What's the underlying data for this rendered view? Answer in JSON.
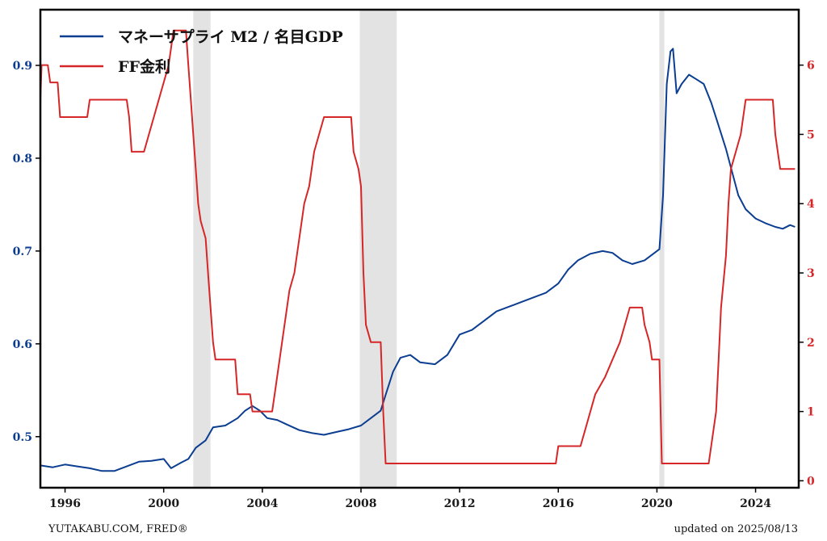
{
  "chart_data": {
    "type": "line",
    "x_range": [
      1995,
      2025.75
    ],
    "grid": false,
    "legend_position": "top-left",
    "recessions": [
      {
        "start": 2001.2,
        "end": 2001.9
      },
      {
        "start": 2007.95,
        "end": 2009.45
      },
      {
        "start": 2020.1,
        "end": 2020.3
      }
    ],
    "x_ticks": [
      "1996",
      "2000",
      "2004",
      "2008",
      "2012",
      "2016",
      "2020",
      "2024"
    ],
    "x_tick_values": [
      1996,
      2000,
      2004,
      2008,
      2012,
      2016,
      2020,
      2024
    ],
    "y_left": {
      "range": [
        0.445,
        0.96
      ],
      "ticks": [
        0.5,
        0.6,
        0.7,
        0.8,
        0.9
      ],
      "tick_labels": [
        "0.5",
        "0.6",
        "0.7",
        "0.8",
        "0.9"
      ],
      "color": "#0b3d91"
    },
    "y_right": {
      "range": [
        -0.1,
        6.8
      ],
      "ticks": [
        0,
        1,
        2,
        3,
        4,
        5,
        6
      ],
      "tick_labels": [
        "0",
        "1",
        "2",
        "3",
        "4",
        "5",
        "6"
      ],
      "color": "#d62728"
    },
    "series": [
      {
        "name": "マネーサプライ M2 / 名目GDP",
        "axis": "left",
        "color": "#0b3d91",
        "points": [
          [
            1995.0,
            0.469
          ],
          [
            1995.5,
            0.467
          ],
          [
            1996.0,
            0.47
          ],
          [
            1996.5,
            0.468
          ],
          [
            1997.0,
            0.466
          ],
          [
            1997.5,
            0.463
          ],
          [
            1998.0,
            0.463
          ],
          [
            1998.5,
            0.468
          ],
          [
            1999.0,
            0.473
          ],
          [
            1999.5,
            0.474
          ],
          [
            2000.0,
            0.476
          ],
          [
            2000.3,
            0.466
          ],
          [
            2000.7,
            0.472
          ],
          [
            2001.0,
            0.476
          ],
          [
            2001.3,
            0.488
          ],
          [
            2001.7,
            0.496
          ],
          [
            2002.0,
            0.51
          ],
          [
            2002.5,
            0.512
          ],
          [
            2003.0,
            0.52
          ],
          [
            2003.3,
            0.528
          ],
          [
            2003.6,
            0.533
          ],
          [
            2003.9,
            0.528
          ],
          [
            2004.2,
            0.52
          ],
          [
            2004.6,
            0.518
          ],
          [
            2005.0,
            0.513
          ],
          [
            2005.5,
            0.507
          ],
          [
            2006.0,
            0.504
          ],
          [
            2006.5,
            0.502
          ],
          [
            2007.0,
            0.505
          ],
          [
            2007.5,
            0.508
          ],
          [
            2008.0,
            0.512
          ],
          [
            2008.4,
            0.52
          ],
          [
            2008.8,
            0.528
          ],
          [
            2009.0,
            0.545
          ],
          [
            2009.3,
            0.57
          ],
          [
            2009.6,
            0.585
          ],
          [
            2010.0,
            0.588
          ],
          [
            2010.4,
            0.58
          ],
          [
            2011.0,
            0.578
          ],
          [
            2011.5,
            0.588
          ],
          [
            2012.0,
            0.61
          ],
          [
            2012.5,
            0.615
          ],
          [
            2013.0,
            0.625
          ],
          [
            2013.5,
            0.635
          ],
          [
            2014.0,
            0.64
          ],
          [
            2014.5,
            0.645
          ],
          [
            2015.0,
            0.65
          ],
          [
            2015.5,
            0.655
          ],
          [
            2016.0,
            0.665
          ],
          [
            2016.4,
            0.68
          ],
          [
            2016.8,
            0.69
          ],
          [
            2017.3,
            0.697
          ],
          [
            2017.8,
            0.7
          ],
          [
            2018.2,
            0.698
          ],
          [
            2018.6,
            0.69
          ],
          [
            2019.0,
            0.686
          ],
          [
            2019.5,
            0.69
          ],
          [
            2019.9,
            0.698
          ],
          [
            2020.1,
            0.702
          ],
          [
            2020.25,
            0.76
          ],
          [
            2020.4,
            0.88
          ],
          [
            2020.55,
            0.915
          ],
          [
            2020.65,
            0.918
          ],
          [
            2020.8,
            0.87
          ],
          [
            2021.0,
            0.88
          ],
          [
            2021.3,
            0.89
          ],
          [
            2021.6,
            0.885
          ],
          [
            2021.9,
            0.88
          ],
          [
            2022.2,
            0.86
          ],
          [
            2022.5,
            0.835
          ],
          [
            2022.8,
            0.81
          ],
          [
            2023.0,
            0.79
          ],
          [
            2023.3,
            0.76
          ],
          [
            2023.6,
            0.745
          ],
          [
            2024.0,
            0.735
          ],
          [
            2024.4,
            0.73
          ],
          [
            2024.8,
            0.726
          ],
          [
            2025.1,
            0.724
          ],
          [
            2025.4,
            0.728
          ],
          [
            2025.6,
            0.726
          ]
        ]
      },
      {
        "name": "FF金利",
        "axis": "right",
        "color": "#d62728",
        "points": [
          [
            1995.0,
            5.5
          ],
          [
            1995.05,
            6.0
          ],
          [
            1995.3,
            6.0
          ],
          [
            1995.4,
            5.75
          ],
          [
            1995.7,
            5.75
          ],
          [
            1995.8,
            5.25
          ],
          [
            1996.0,
            5.25
          ],
          [
            1996.9,
            5.25
          ],
          [
            1997.0,
            5.5
          ],
          [
            1998.5,
            5.5
          ],
          [
            1998.6,
            5.25
          ],
          [
            1998.7,
            4.75
          ],
          [
            1999.2,
            4.75
          ],
          [
            1999.4,
            5.0
          ],
          [
            1999.6,
            5.25
          ],
          [
            1999.8,
            5.5
          ],
          [
            2000.0,
            5.75
          ],
          [
            2000.2,
            6.0
          ],
          [
            2000.4,
            6.5
          ],
          [
            2000.9,
            6.5
          ],
          [
            2001.0,
            6.0
          ],
          [
            2001.1,
            5.5
          ],
          [
            2001.2,
            5.0
          ],
          [
            2001.3,
            4.5
          ],
          [
            2001.4,
            4.0
          ],
          [
            2001.5,
            3.75
          ],
          [
            2001.7,
            3.5
          ],
          [
            2001.8,
            3.0
          ],
          [
            2001.9,
            2.5
          ],
          [
            2002.0,
            2.0
          ],
          [
            2002.1,
            1.75
          ],
          [
            2002.9,
            1.75
          ],
          [
            2003.0,
            1.25
          ],
          [
            2003.5,
            1.25
          ],
          [
            2003.6,
            1.0
          ],
          [
            2004.4,
            1.0
          ],
          [
            2004.5,
            1.25
          ],
          [
            2004.7,
            1.75
          ],
          [
            2004.9,
            2.25
          ],
          [
            2005.1,
            2.75
          ],
          [
            2005.3,
            3.0
          ],
          [
            2005.5,
            3.5
          ],
          [
            2005.7,
            4.0
          ],
          [
            2005.9,
            4.25
          ],
          [
            2006.1,
            4.75
          ],
          [
            2006.3,
            5.0
          ],
          [
            2006.5,
            5.25
          ],
          [
            2007.6,
            5.25
          ],
          [
            2007.7,
            4.75
          ],
          [
            2007.9,
            4.5
          ],
          [
            2008.0,
            4.25
          ],
          [
            2008.1,
            3.0
          ],
          [
            2008.2,
            2.25
          ],
          [
            2008.4,
            2.0
          ],
          [
            2008.8,
            2.0
          ],
          [
            2008.9,
            1.0
          ],
          [
            2009.0,
            0.25
          ],
          [
            2015.9,
            0.25
          ],
          [
            2016.0,
            0.5
          ],
          [
            2016.9,
            0.5
          ],
          [
            2017.1,
            0.75
          ],
          [
            2017.3,
            1.0
          ],
          [
            2017.5,
            1.25
          ],
          [
            2017.9,
            1.5
          ],
          [
            2018.2,
            1.75
          ],
          [
            2018.5,
            2.0
          ],
          [
            2018.7,
            2.25
          ],
          [
            2018.9,
            2.5
          ],
          [
            2019.4,
            2.5
          ],
          [
            2019.5,
            2.25
          ],
          [
            2019.7,
            2.0
          ],
          [
            2019.8,
            1.75
          ],
          [
            2020.1,
            1.75
          ],
          [
            2020.2,
            0.25
          ],
          [
            2022.1,
            0.25
          ],
          [
            2022.2,
            0.5
          ],
          [
            2022.4,
            1.0
          ],
          [
            2022.5,
            1.75
          ],
          [
            2022.6,
            2.5
          ],
          [
            2022.8,
            3.25
          ],
          [
            2022.9,
            4.0
          ],
          [
            2023.0,
            4.5
          ],
          [
            2023.2,
            4.75
          ],
          [
            2023.4,
            5.0
          ],
          [
            2023.6,
            5.5
          ],
          [
            2024.7,
            5.5
          ],
          [
            2024.8,
            5.0
          ],
          [
            2024.9,
            4.75
          ],
          [
            2025.0,
            4.5
          ],
          [
            2025.6,
            4.5
          ]
        ]
      }
    ]
  },
  "footer": {
    "source": "YUTAKABU.COM, FRED®",
    "updated": "updated on 2025/08/13"
  }
}
